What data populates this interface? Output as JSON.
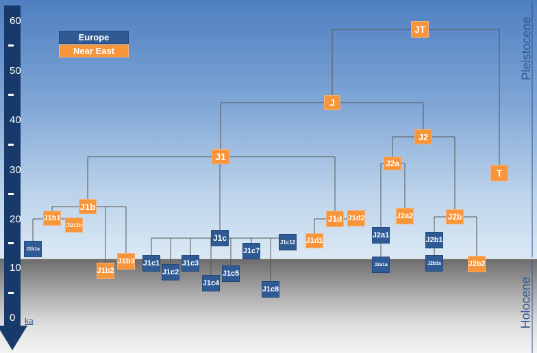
{
  "legend": {
    "europe": {
      "label": "Europe",
      "color": "#2f5a94"
    },
    "near_east": {
      "label": "Near East",
      "color": "#f7953a"
    }
  },
  "axis": {
    "ticks": [
      "60",
      "50",
      "40",
      "30",
      "20",
      "10",
      "0"
    ],
    "unit": "ka",
    "direction": "arrow pointing down (time)"
  },
  "eras": {
    "upper": "Pleistocene",
    "lower": "Holocene"
  },
  "tree": {
    "line_color": "#555555",
    "nodes": [
      {
        "id": "JT",
        "label": "JT",
        "region": "near_east"
      },
      {
        "id": "J",
        "label": "J",
        "region": "near_east"
      },
      {
        "id": "T",
        "label": "T",
        "region": "near_east"
      },
      {
        "id": "J1",
        "label": "J1",
        "region": "near_east"
      },
      {
        "id": "J2",
        "label": "J2",
        "region": "near_east"
      },
      {
        "id": "J2a",
        "label": "J2a",
        "region": "near_east"
      },
      {
        "id": "J2b",
        "label": "J2b",
        "region": "near_east"
      },
      {
        "id": "J1b",
        "label": "J1b",
        "region": "near_east"
      },
      {
        "id": "J1b1",
        "label": "J1b1",
        "region": "near_east"
      },
      {
        "id": "J1b1b",
        "label": "J1b1b",
        "region": "near_east"
      },
      {
        "id": "J1b1a",
        "label": "J1b1a",
        "region": "europe"
      },
      {
        "id": "J1b2",
        "label": "J1b2",
        "region": "near_east"
      },
      {
        "id": "J1b3",
        "label": "J1b3",
        "region": "near_east"
      },
      {
        "id": "J1c",
        "label": "J1c",
        "region": "europe"
      },
      {
        "id": "J1c1",
        "label": "J1c1",
        "region": "europe"
      },
      {
        "id": "J1c2",
        "label": "J1c2",
        "region": "europe"
      },
      {
        "id": "J1c3",
        "label": "J1c3",
        "region": "europe"
      },
      {
        "id": "J1c4",
        "label": "J1c4",
        "region": "europe"
      },
      {
        "id": "J1c5",
        "label": "J1c5",
        "region": "europe"
      },
      {
        "id": "J1c7",
        "label": "J1c7",
        "region": "europe"
      },
      {
        "id": "J1c8",
        "label": "J1c8",
        "region": "europe"
      },
      {
        "id": "J1c12",
        "label": "J1c12",
        "region": "europe"
      },
      {
        "id": "J1d",
        "label": "J1d",
        "region": "near_east"
      },
      {
        "id": "J1d1",
        "label": "J1d1",
        "region": "near_east"
      },
      {
        "id": "J1d2",
        "label": "J1d2",
        "region": "near_east"
      },
      {
        "id": "J2a1",
        "label": "J2a1",
        "region": "europe"
      },
      {
        "id": "J2a1a",
        "label": "J2a1a",
        "region": "europe"
      },
      {
        "id": "J2a2",
        "label": "J2a2",
        "region": "near_east"
      },
      {
        "id": "J2b1",
        "label": "J2b1",
        "region": "europe"
      },
      {
        "id": "J2b1a",
        "label": "J2b1a",
        "region": "europe"
      },
      {
        "id": "J2b2",
        "label": "J2b2",
        "region": "near_east"
      }
    ]
  }
}
